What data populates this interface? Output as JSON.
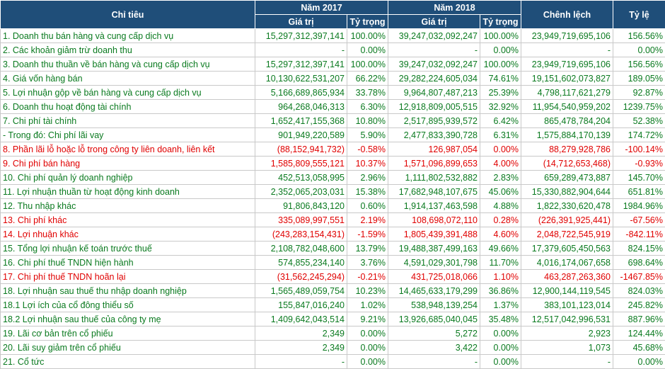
{
  "headers": {
    "chi_tieu": "Chỉ tiêu",
    "year_2017": "Năm 2017",
    "year_2018": "Năm 2018",
    "chenh_lech": "Chênh lệch",
    "ty_le": "Tỷ lệ",
    "gia_tri": "Giá trị",
    "ty_trong": "Tỷ trọng"
  },
  "colors": {
    "header_bg": "#1f4e79",
    "green_text": "#0a7a1f",
    "red_text": "#e00000"
  },
  "rows": [
    {
      "color": "green",
      "label": "1. Doanh thu bán hàng và cung cấp dịch vụ",
      "v2017": "15,297,312,397,141",
      "t2017": "100.00%",
      "v2018": "39,247,032,092,247",
      "t2018": "100.00%",
      "diff": "23,949,719,695,106",
      "rate": "156.56%"
    },
    {
      "color": "green",
      "label": "2. Các khoản giảm trừ doanh thu",
      "v2017": "-",
      "t2017": "0.00%",
      "v2018": "-",
      "t2018": "0.00%",
      "diff": "-",
      "rate": "0.00%"
    },
    {
      "color": "green",
      "label": "3. Doanh thu thuần về bán hàng và cung cấp dịch vụ",
      "v2017": "15,297,312,397,141",
      "t2017": "100.00%",
      "v2018": "39,247,032,092,247",
      "t2018": "100.00%",
      "diff": "23,949,719,695,106",
      "rate": "156.56%"
    },
    {
      "color": "green",
      "label": "4. Giá vốn hàng bán",
      "v2017": "10,130,622,531,207",
      "t2017": "66.22%",
      "v2018": "29,282,224,605,034",
      "t2018": "74.61%",
      "diff": "19,151,602,073,827",
      "rate": "189.05%"
    },
    {
      "color": "green",
      "label": "5. Lợi nhuận gộp về bán hàng và cung cấp dịch vụ",
      "v2017": "5,166,689,865,934",
      "t2017": "33.78%",
      "v2018": "9,964,807,487,213",
      "t2018": "25.39%",
      "diff": "4,798,117,621,279",
      "rate": "92.87%"
    },
    {
      "color": "green",
      "label": "6. Doanh thu hoạt động tài chính",
      "v2017": "964,268,046,313",
      "t2017": "6.30%",
      "v2018": "12,918,809,005,515",
      "t2018": "32.92%",
      "diff": "11,954,540,959,202",
      "rate": "1239.75%"
    },
    {
      "color": "green",
      "label": "7. Chi phí tài chính",
      "v2017": "1,652,417,155,368",
      "t2017": "10.80%",
      "v2018": "2,517,895,939,572",
      "t2018": "6.42%",
      "diff": "865,478,784,204",
      "rate": "52.38%"
    },
    {
      "color": "green",
      "label": " - Trong đó: Chi phí lãi vay",
      "v2017": "901,949,220,589",
      "t2017": "5.90%",
      "v2018": "2,477,833,390,728",
      "t2018": "6.31%",
      "diff": "1,575,884,170,139",
      "rate": "174.72%"
    },
    {
      "color": "red",
      "label": "8. Phần lãi lỗ hoặc lỗ trong công ty liên doanh, liên kết",
      "v2017": "(88,152,941,732)",
      "t2017": "-0.58%",
      "v2018": "126,987,054",
      "t2018": "0.00%",
      "diff": "88,279,928,786",
      "rate": "-100.14%"
    },
    {
      "color": "red",
      "label": "9. Chi phí bán hàng",
      "v2017": "1,585,809,555,121",
      "t2017": "10.37%",
      "v2018": "1,571,096,899,653",
      "t2018": "4.00%",
      "diff": "(14,712,653,468)",
      "rate": "-0.93%"
    },
    {
      "color": "green",
      "label": "10. Chi phí quản lý doanh nghiệp",
      "v2017": "452,513,058,995",
      "t2017": "2.96%",
      "v2018": "1,111,802,532,882",
      "t2018": "2.83%",
      "diff": "659,289,473,887",
      "rate": "145.70%"
    },
    {
      "color": "green",
      "label": "11. Lợi nhuận thuần từ hoạt động kinh doanh",
      "v2017": "2,352,065,203,031",
      "t2017": "15.38%",
      "v2018": "17,682,948,107,675",
      "t2018": "45.06%",
      "diff": "15,330,882,904,644",
      "rate": "651.81%"
    },
    {
      "color": "green",
      "label": "12. Thu nhập khác",
      "v2017": "91,806,843,120",
      "t2017": "0.60%",
      "v2018": "1,914,137,463,598",
      "t2018": "4.88%",
      "diff": "1,822,330,620,478",
      "rate": "1984.96%"
    },
    {
      "color": "red",
      "label": "13. Chi phí khác",
      "v2017": "335,089,997,551",
      "t2017": "2.19%",
      "v2018": "108,698,072,110",
      "t2018": "0.28%",
      "diff": "(226,391,925,441)",
      "rate": "-67.56%"
    },
    {
      "color": "red",
      "label": "14. Lợi nhuận khác",
      "v2017": "(243,283,154,431)",
      "t2017": "-1.59%",
      "v2018": "1,805,439,391,488",
      "t2018": "4.60%",
      "diff": "2,048,722,545,919",
      "rate": "-842.11%"
    },
    {
      "color": "green",
      "label": "15. Tổng lợi nhuận kế toán trước thuế",
      "v2017": "2,108,782,048,600",
      "t2017": "13.79%",
      "v2018": "19,488,387,499,163",
      "t2018": "49.66%",
      "diff": "17,379,605,450,563",
      "rate": "824.15%"
    },
    {
      "color": "green",
      "label": "16. Chi phí thuế TNDN hiện hành",
      "v2017": "574,855,234,140",
      "t2017": "3.76%",
      "v2018": "4,591,029,301,798",
      "t2018": "11.70%",
      "diff": "4,016,174,067,658",
      "rate": "698.64%"
    },
    {
      "color": "red",
      "label": "17. Chi phí thuế TNDN hoãn lại",
      "v2017": "(31,562,245,294)",
      "t2017": "-0.21%",
      "v2018": "431,725,018,066",
      "t2018": "1.10%",
      "diff": "463,287,263,360",
      "rate": "-1467.85%"
    },
    {
      "color": "green",
      "label": "18. Lợi nhuận sau thuế thu nhập doanh nghiệp",
      "v2017": "1,565,489,059,754",
      "t2017": "10.23%",
      "v2018": "14,465,633,179,299",
      "t2018": "36.86%",
      "diff": "12,900,144,119,545",
      "rate": "824.03%"
    },
    {
      "color": "green",
      "label": "18.1 Lợi ích của cổ đông thiểu số",
      "v2017": "155,847,016,240",
      "t2017": "1.02%",
      "v2018": "538,948,139,254",
      "t2018": "1.37%",
      "diff": "383,101,123,014",
      "rate": "245.82%"
    },
    {
      "color": "green",
      "label": "18.2 Lợi nhuận sau thuế của công ty mẹ",
      "v2017": "1,409,642,043,514",
      "t2017": "9.21%",
      "v2018": "13,926,685,040,045",
      "t2018": "35.48%",
      "diff": "12,517,042,996,531",
      "rate": "887.96%"
    },
    {
      "color": "green",
      "label": "19. Lãi cơ bản trên cổ phiếu",
      "v2017": "2,349",
      "t2017": "0.00%",
      "v2018": "5,272",
      "t2018": "0.00%",
      "diff": "2,923",
      "rate": "124.44%"
    },
    {
      "color": "green",
      "label": "20. Lãi suy giảm trên cổ phiếu",
      "v2017": "2,349",
      "t2017": "0.00%",
      "v2018": "3,422",
      "t2018": "0.00%",
      "diff": "1,073",
      "rate": "45.68%"
    },
    {
      "color": "green",
      "label": "21. Cổ tức",
      "v2017": "-",
      "t2017": "0.00%",
      "v2018": "-",
      "t2018": "0.00%",
      "diff": "-",
      "rate": "0.00%"
    }
  ]
}
